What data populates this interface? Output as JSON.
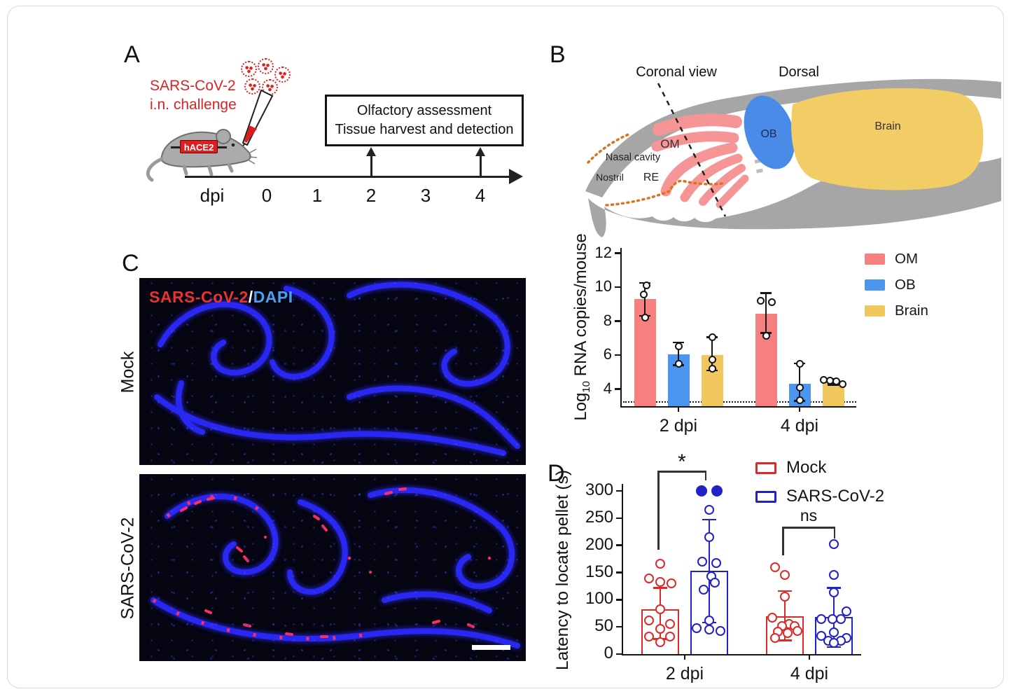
{
  "panel_a": {
    "label": "A",
    "challenge_text_line1": "SARS-CoV-2",
    "challenge_text_line2": "i.n. challenge",
    "mouse_badge": "hACE2",
    "assessment_box_line1": "Olfactory assessment",
    "assessment_box_line2": "Tissue harvest and detection",
    "timeline_label": "dpi",
    "timeline_ticks": [
      "0",
      "1",
      "2",
      "3",
      "4"
    ]
  },
  "panel_b": {
    "label": "B",
    "diagram": {
      "coronal_view": "Coronal view",
      "dorsal": "Dorsal",
      "ob": "OB",
      "brain": "Brain",
      "om": "OM",
      "nasal_cavity": "Nasal cavity",
      "nostril": "Nostril",
      "re": "RE"
    }
  },
  "panel_c": {
    "label": "C",
    "row1_label": "Mock",
    "row2_label": "SARS-CoV-2",
    "stain_red": "SARS-CoV-2",
    "stain_sep": "/",
    "stain_blue": "DAPI"
  },
  "panel_d": {
    "label": "D"
  },
  "colors": {
    "accent_red": "#dc1f1f",
    "om": "#f5807f",
    "ob": "#4d96f0",
    "brain": "#efc75e",
    "mock": "#db2a27",
    "sars": "#2121c8",
    "diagram_gray": "#a6a6a6",
    "diagram_pink": "#f59595",
    "diagram_ob_blue": "#4a8be8",
    "diagram_brain_yellow": "#f2cc64",
    "stain_red_text": "#e8342e",
    "dapi_blue_text": "#4da0f0"
  },
  "chart_data": [
    {
      "type": "bar",
      "title": "Viral RNA load in olfactory mucosa, olfactory bulb and brain",
      "ylabel": "Log10 RNA copies/mouse",
      "ylabel_parts": {
        "pre": "Log",
        "sub": "10",
        "post": " RNA copies/mouse"
      },
      "categories": [
        "2 dpi",
        "4 dpi"
      ],
      "ylim": [
        3,
        12
      ],
      "yticks": [
        "4",
        "6",
        "8",
        "10",
        "12"
      ],
      "detection_limit": 3.3,
      "grid": false,
      "legend_position": "right",
      "series": [
        {
          "name": "OM",
          "color": "#f5807f",
          "means": [
            9.3,
            8.45
          ],
          "sd_low": [
            8.3,
            7.3
          ],
          "sd_high": [
            10.25,
            9.65
          ],
          "points": [
            [
              10.1,
              9.55,
              8.2
            ],
            [
              9.2,
              9.1,
              7.15
            ]
          ],
          "dx": [
            [
              2,
              -2,
              0
            ],
            [
              -8,
              8,
              0
            ]
          ]
        },
        {
          "name": "OB",
          "color": "#4d96f0",
          "means": [
            6.05,
            4.3
          ],
          "sd_low": [
            5.4,
            3.3
          ],
          "sd_high": [
            6.75,
            5.5
          ],
          "points": [
            [
              6.5,
              5.5
            ],
            [
              5.5,
              4.1,
              3.35
            ]
          ],
          "dx": [
            [
              0,
              0
            ],
            [
              0,
              0,
              0
            ]
          ]
        },
        {
          "name": "Brain",
          "color": "#efc75e",
          "means": [
            6.0,
            4.4
          ],
          "sd_low": [
            5.1,
            4.25
          ],
          "sd_high": [
            7.05,
            4.6
          ],
          "points": [
            [
              7.05,
              5.75,
              5.2
            ],
            [
              4.55,
              4.5,
              4.45,
              4.3
            ]
          ],
          "dx": [
            [
              0,
              0,
              0
            ],
            [
              -14,
              -5,
              4,
              13
            ]
          ]
        }
      ]
    },
    {
      "type": "bar",
      "title": "Buried food finding test",
      "ylabel": "Latency to locate pellet (s)",
      "categories": [
        "2 dpi",
        "4 dpi"
      ],
      "ylim": [
        0,
        300
      ],
      "yticks": [
        "0",
        "50",
        "100",
        "150",
        "200",
        "250",
        "300"
      ],
      "grid": false,
      "legend_position": "top-right",
      "significance": [
        {
          "group": "2 dpi",
          "label": "*"
        },
        {
          "group": "4 dpi",
          "label": "ns"
        }
      ],
      "series": [
        {
          "name": "Mock",
          "color": "#db2a27",
          "style": "open",
          "means": [
            82,
            69
          ],
          "sd_low": [
            28,
            25
          ],
          "sd_high": [
            122,
            116
          ],
          "points": [
            [
              166,
              139,
              133,
              130,
              82,
              62,
              55,
              46,
              32,
              32,
              22
            ],
            [
              160,
              145,
              105,
              67,
              55,
              52,
              51,
              43,
              41,
              39,
              30
            ]
          ],
          "dx": [
            [
              0,
              -16,
              0,
              16,
              0,
              -16,
              14,
              0,
              -16,
              14,
              0
            ],
            [
              -14,
              0,
              0,
              -18,
              6,
              14,
              -4,
              18,
              -10,
              4,
              -14
            ]
          ],
          "points_capped": [
            [],
            []
          ],
          "dx_capped": [
            [],
            []
          ]
        },
        {
          "name": "SARS-CoV-2",
          "color": "#2121c8",
          "style": "open",
          "means": [
            153,
            68
          ],
          "sd_low": [
            58,
            13
          ],
          "sd_high": [
            247,
            122
          ],
          "points": [
            [
              265,
              215,
              170,
              168,
              143,
              132,
              118,
              62,
              48,
              45,
              43
            ],
            [
              202,
              145,
              113,
              79,
              65,
              64,
              64,
              40,
              33,
              29,
              25,
              24,
              20
            ]
          ],
          "dx": [
            [
              0,
              0,
              -10,
              10,
              3,
              8,
              -8,
              0,
              -18,
              0,
              16
            ],
            [
              0,
              0,
              0,
              18,
              -18,
              -2,
              10,
              0,
              -18,
              18,
              -8,
              10,
              0
            ]
          ],
          "points_capped": [
            [
              300,
              300
            ],
            []
          ],
          "dx_capped": [
            [
              -11,
              11
            ],
            []
          ]
        }
      ]
    }
  ]
}
